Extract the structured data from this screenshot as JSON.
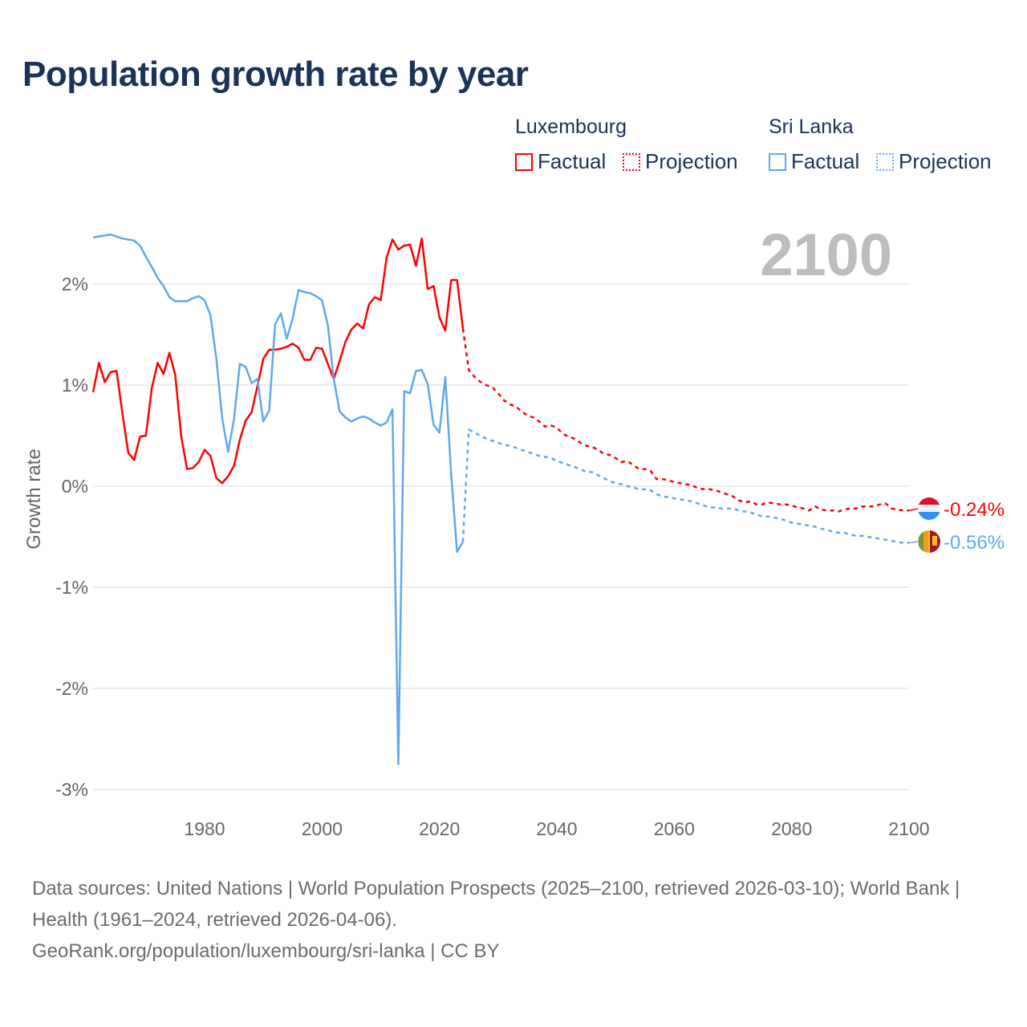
{
  "chart_data": {
    "type": "line",
    "title": "Population growth rate by year",
    "ylabel": "Growth rate",
    "xlabel": "",
    "xlim": [
      1961,
      2100
    ],
    "ylim": [
      -3,
      2.6
    ],
    "x_ticks": [
      1980,
      2000,
      2020,
      2040,
      2060,
      2080,
      2100
    ],
    "x_tick_labels": [
      "1980",
      "2000",
      "2020",
      "2040",
      "2060",
      "2080",
      "2100"
    ],
    "y_ticks": [
      2,
      1,
      0,
      -1,
      -2,
      -3
    ],
    "y_tick_labels": [
      "2%",
      "1%",
      "0%",
      "-1%",
      "-2%",
      "-3%"
    ],
    "grid": true,
    "year_watermark": "2100",
    "legend": {
      "placement": "top-right",
      "groups": [
        {
          "name": "Luxembourg",
          "factual_label": "Factual",
          "projection_label": "Projection",
          "color": "#ff0000"
        },
        {
          "name": "Sri Lanka",
          "factual_label": "Factual",
          "projection_label": "Projection",
          "color": "#5fa8ee"
        }
      ]
    },
    "series": [
      {
        "name": "Luxembourg",
        "color": "#ff0000",
        "end_label": "-0.24%",
        "factual_start": 1961,
        "factual": [
          0.93,
          1.22,
          1.03,
          1.13,
          1.14,
          0.72,
          0.33,
          0.26,
          0.49,
          0.5,
          0.97,
          1.22,
          1.11,
          1.32,
          1.1,
          0.5,
          0.17,
          0.18,
          0.24,
          0.36,
          0.3,
          0.08,
          0.03,
          0.1,
          0.2,
          0.46,
          0.65,
          0.73,
          0.99,
          1.26,
          1.35,
          1.35,
          1.36,
          1.38,
          1.41,
          1.37,
          1.25,
          1.25,
          1.37,
          1.36,
          1.21,
          1.06,
          1.24,
          1.43,
          1.55,
          1.61,
          1.56,
          1.8,
          1.87,
          1.84,
          2.26,
          2.44,
          2.34,
          2.38,
          2.39,
          2.18,
          2.45,
          1.95,
          1.98,
          1.67,
          1.54,
          2.04,
          2.04,
          1.56
        ],
        "projection_start": 2025,
        "projection": [
          1.15,
          1.08,
          1.03,
          1.0,
          0.98,
          0.92,
          0.85,
          0.81,
          0.79,
          0.74,
          0.7,
          0.68,
          0.64,
          0.59,
          0.6,
          0.58,
          0.52,
          0.49,
          0.47,
          0.43,
          0.4,
          0.39,
          0.36,
          0.32,
          0.31,
          0.28,
          0.24,
          0.25,
          0.21,
          0.17,
          0.17,
          0.15,
          0.07,
          0.07,
          0.06,
          0.04,
          0.03,
          0.02,
          0.01,
          -0.02,
          -0.03,
          -0.03,
          -0.04,
          -0.06,
          -0.08,
          -0.1,
          -0.14,
          -0.16,
          -0.15,
          -0.18,
          -0.18,
          -0.16,
          -0.17,
          -0.18,
          -0.18,
          -0.19,
          -0.21,
          -0.22,
          -0.24,
          -0.2,
          -0.23,
          -0.24,
          -0.24,
          -0.25,
          -0.23,
          -0.22,
          -0.22,
          -0.2,
          -0.2,
          -0.2,
          -0.18,
          -0.17,
          -0.22,
          -0.23,
          -0.24,
          -0.24
        ]
      },
      {
        "name": "Sri Lanka",
        "color": "#5fa8ee",
        "end_label": "-0.56%",
        "factual_start": 1961,
        "factual": [
          2.46,
          2.47,
          2.48,
          2.49,
          2.47,
          2.45,
          2.44,
          2.43,
          2.38,
          2.27,
          2.17,
          2.06,
          1.98,
          1.87,
          1.83,
          1.83,
          1.83,
          1.86,
          1.88,
          1.84,
          1.69,
          1.26,
          0.67,
          0.34,
          0.66,
          1.21,
          1.18,
          1.02,
          1.06,
          0.64,
          0.75,
          1.6,
          1.71,
          1.46,
          1.66,
          1.94,
          1.92,
          1.91,
          1.88,
          1.84,
          1.59,
          1.06,
          0.74,
          0.68,
          0.64,
          0.67,
          0.69,
          0.67,
          0.63,
          0.6,
          0.63,
          0.76,
          -2.75,
          0.94,
          0.92,
          1.14,
          1.15,
          1.01,
          0.61,
          0.53,
          1.08,
          0.12,
          -0.65,
          -0.55
        ],
        "projection_start": 2025,
        "projection": [
          0.56,
          0.53,
          0.5,
          0.47,
          0.45,
          0.43,
          0.41,
          0.4,
          0.38,
          0.36,
          0.34,
          0.32,
          0.3,
          0.29,
          0.28,
          0.25,
          0.23,
          0.21,
          0.19,
          0.17,
          0.14,
          0.14,
          0.11,
          0.08,
          0.05,
          0.03,
          0.02,
          0.0,
          -0.01,
          -0.03,
          -0.03,
          -0.04,
          -0.08,
          -0.1,
          -0.11,
          -0.12,
          -0.13,
          -0.14,
          -0.15,
          -0.17,
          -0.19,
          -0.21,
          -0.21,
          -0.22,
          -0.22,
          -0.22,
          -0.24,
          -0.25,
          -0.26,
          -0.28,
          -0.3,
          -0.3,
          -0.31,
          -0.32,
          -0.34,
          -0.36,
          -0.37,
          -0.38,
          -0.39,
          -0.4,
          -0.42,
          -0.43,
          -0.45,
          -0.46,
          -0.46,
          -0.48,
          -0.49,
          -0.49,
          -0.5,
          -0.51,
          -0.52,
          -0.53,
          -0.54,
          -0.55,
          -0.56,
          -0.56
        ]
      }
    ]
  },
  "footer": {
    "sources": "Data sources: United Nations | World Population Prospects (2025–2100, retrieved 2026-03-10); World Bank | Health (1961–2024, retrieved 2026-04-06).",
    "credit": "GeoRank.org/population/luxembourg/sri-lanka | CC BY"
  }
}
